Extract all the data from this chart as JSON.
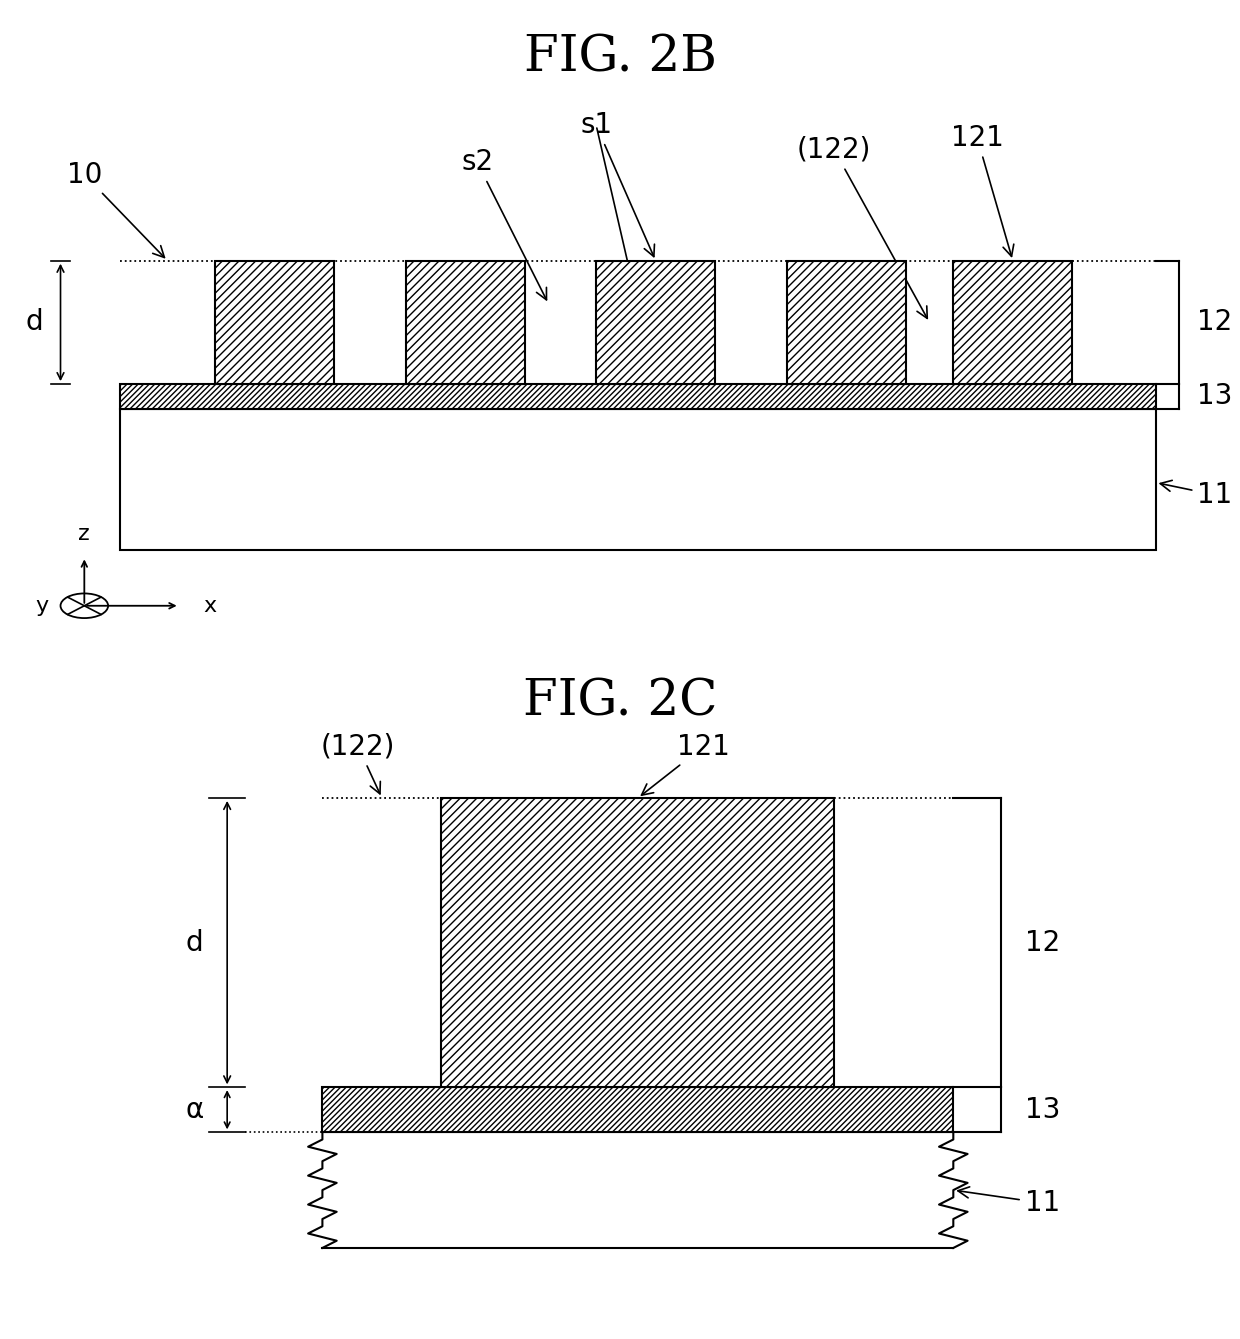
{
  "fig_title_2b": "FIG. 2B",
  "fig_title_2c": "FIG. 2C",
  "bg_color": "#ffffff",
  "line_color": "#000000",
  "label_10": "10",
  "label_11": "11",
  "label_12": "12",
  "label_13": "13",
  "label_121": "121",
  "label_122": "(122)",
  "label_s1": "s1",
  "label_s2": "s2",
  "label_d": "d",
  "label_alpha": "α",
  "title_fontsize": 36,
  "label_fontsize": 20,
  "small_fontsize": 17
}
